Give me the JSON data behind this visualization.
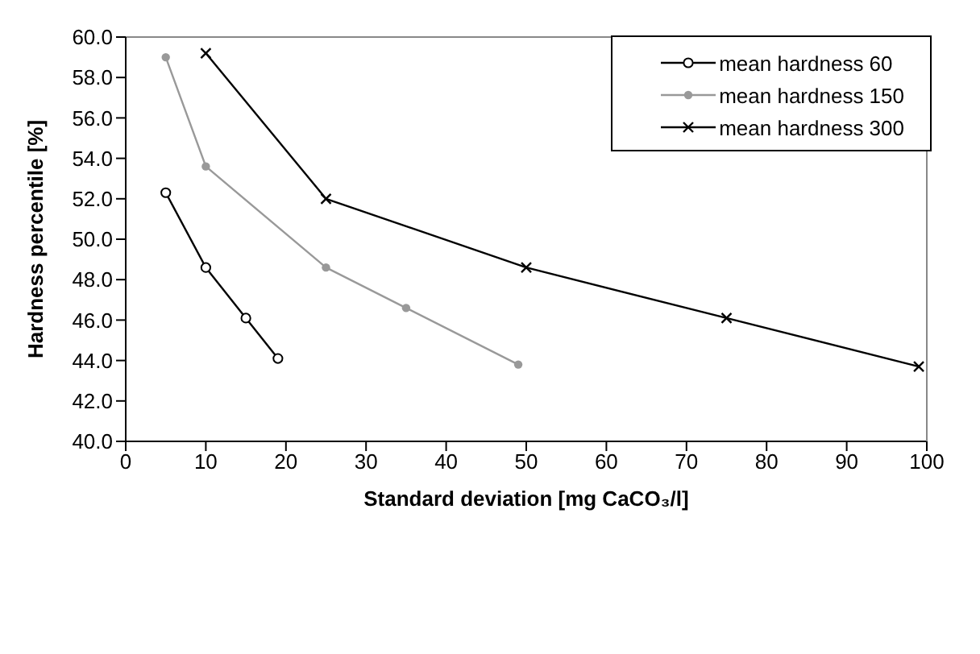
{
  "chart_data": {
    "type": "line",
    "xlabel": "Standard deviation [mg CaCO₃/l]",
    "ylabel": "Hardness percentile [%]",
    "xlim": [
      0,
      100
    ],
    "xticks": [
      0,
      10,
      20,
      30,
      40,
      50,
      60,
      70,
      80,
      90,
      100
    ],
    "ylim": [
      40,
      60
    ],
    "yticks": [
      {
        "value": 40,
        "label": "40.0"
      },
      {
        "value": 42,
        "label": "42.0"
      },
      {
        "value": 44,
        "label": "44.0"
      },
      {
        "value": 46,
        "label": "46.0"
      },
      {
        "value": 48,
        "label": "48.0"
      },
      {
        "value": 50,
        "label": "50.0"
      },
      {
        "value": 52,
        "label": "52.0"
      },
      {
        "value": 54,
        "label": "54.0"
      },
      {
        "value": 56,
        "label": "56.0"
      },
      {
        "value": 58,
        "label": "58.0"
      },
      {
        "value": 60,
        "label": "60.0"
      }
    ],
    "legend": "top right",
    "line_style": "solid",
    "series": [
      {
        "name": "mean hardness 60",
        "color": "#000000",
        "marker": "circle-open",
        "x": [
          5,
          10,
          15,
          19
        ],
        "values": [
          52.3,
          48.6,
          46.1,
          44.1
        ]
      },
      {
        "name": "mean hardness 150",
        "color": "#999999",
        "marker": "circle",
        "x": [
          5,
          10,
          25,
          35,
          49
        ],
        "values": [
          59.0,
          53.6,
          48.6,
          46.6,
          43.8
        ]
      },
      {
        "name": "mean hardness 300",
        "color": "#000000",
        "marker": "cross",
        "x": [
          10,
          25,
          50,
          75,
          99
        ],
        "values": [
          59.2,
          52.0,
          48.6,
          46.1,
          43.7
        ]
      }
    ]
  }
}
